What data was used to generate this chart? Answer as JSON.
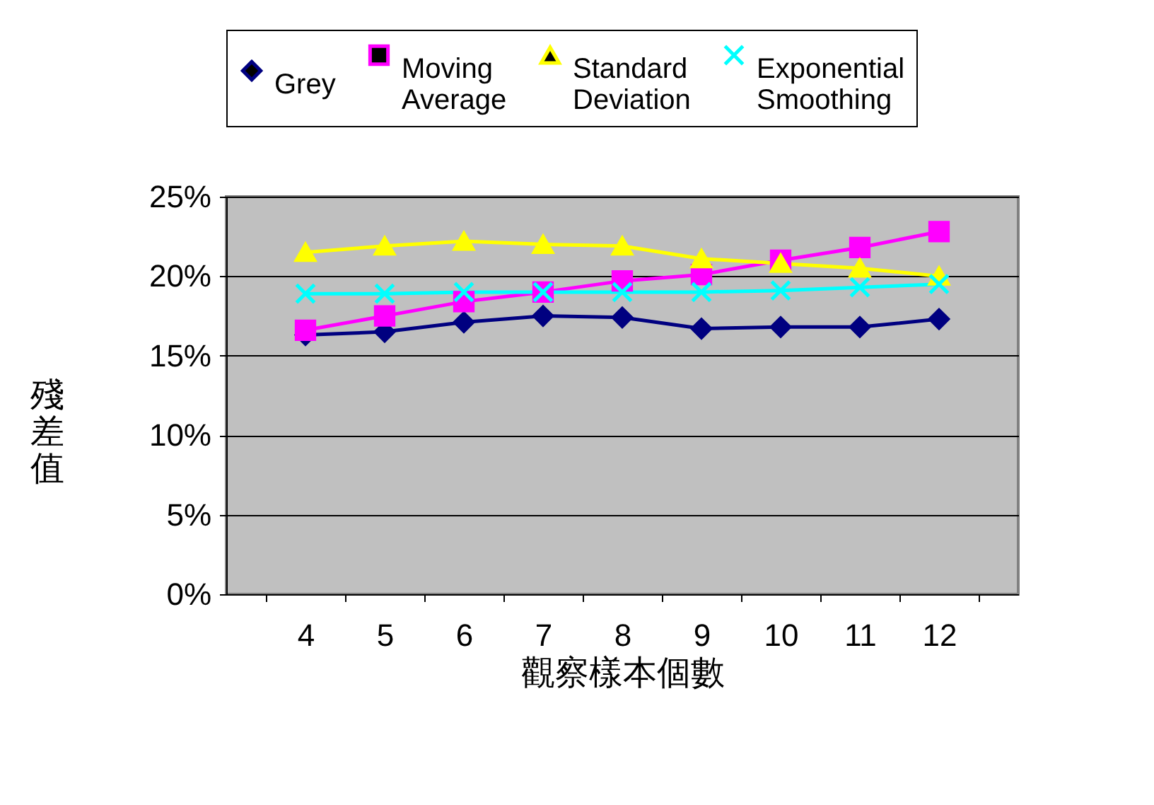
{
  "chart_data": {
    "type": "line",
    "xlabel": "觀察樣本個數",
    "ylabel": "殘差值",
    "categories": [
      "4",
      "5",
      "6",
      "7",
      "8",
      "9",
      "10",
      "11",
      "12"
    ],
    "series": [
      {
        "name": "Grey",
        "color": "#000080",
        "marker": "diamond",
        "values": [
          16.3,
          16.5,
          17.1,
          17.5,
          17.4,
          16.7,
          16.8,
          16.8,
          17.3
        ]
      },
      {
        "name": "Moving Average",
        "color": "#ff00ff",
        "marker": "square",
        "values": [
          16.6,
          17.5,
          18.4,
          19.0,
          19.7,
          20.1,
          21.0,
          21.8,
          22.8
        ]
      },
      {
        "name": "Standard Deviation",
        "color": "#ffff00",
        "marker": "triangle",
        "values": [
          21.5,
          21.9,
          22.2,
          22.0,
          21.9,
          21.1,
          20.8,
          20.5,
          20.0
        ]
      },
      {
        "name": "Exponential Smoothing",
        "color": "#00ffff",
        "marker": "cross",
        "values": [
          18.9,
          18.9,
          19.0,
          19.0,
          19.0,
          19.0,
          19.1,
          19.3,
          19.5
        ]
      }
    ],
    "ylim": [
      0,
      25
    ],
    "yticks": [
      {
        "value": 0,
        "label": "0%"
      },
      {
        "value": 5,
        "label": "5%"
      },
      {
        "value": 10,
        "label": "10%"
      },
      {
        "value": 15,
        "label": "15%"
      },
      {
        "value": 20,
        "label": "20%"
      },
      {
        "value": 25,
        "label": "25%"
      }
    ],
    "grid": "y",
    "legend": "top",
    "line_style": "solid"
  }
}
